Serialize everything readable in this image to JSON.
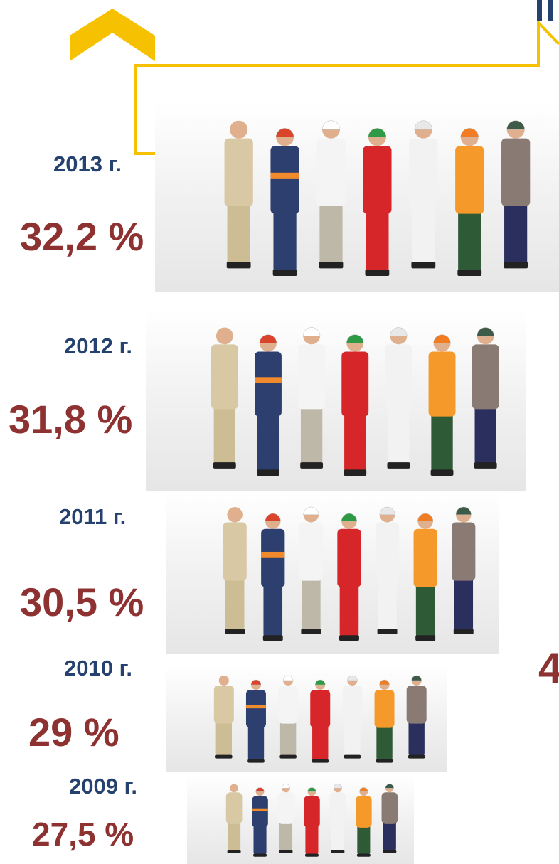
{
  "items": [
    {
      "year": "2013 г.",
      "percent": "32,2 %"
    },
    {
      "year": "2012 г.",
      "percent": "31,8 %"
    },
    {
      "year": "2011 г.",
      "percent": "30,5 %"
    },
    {
      "year": "2010 г.",
      "percent": "29 %"
    },
    {
      "year": "2009 г.",
      "percent": "27,5 %"
    }
  ],
  "side_text": "4"
}
